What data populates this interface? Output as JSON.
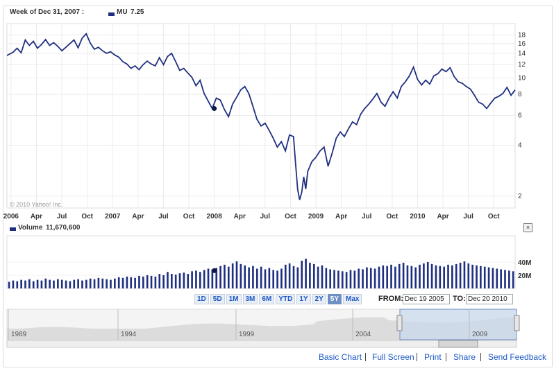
{
  "header": {
    "week_label": "Week of Dec 31, 2007 :",
    "symbol": "MU",
    "symbol_value": "7.25",
    "line_color": "#1f2f7f"
  },
  "watermark": "© 2010 Yahoo! Inc.",
  "volume_header": {
    "label": "Volume",
    "value": "11,670,600"
  },
  "close_icon": "close-icon",
  "range_buttons": [
    {
      "label": "1D",
      "active": false
    },
    {
      "label": "5D",
      "active": false
    },
    {
      "label": "1M",
      "active": false
    },
    {
      "label": "3M",
      "active": false
    },
    {
      "label": "6M",
      "active": false
    },
    {
      "label": "YTD",
      "active": false
    },
    {
      "label": "1Y",
      "active": false
    },
    {
      "label": "2Y",
      "active": false
    },
    {
      "label": "5Y",
      "active": true
    },
    {
      "label": "Max",
      "active": false
    }
  ],
  "date_range": {
    "from_label": "FROM:",
    "from_value": "Dec 19 2005",
    "to_label": "TO:",
    "to_value": "Dec 20 2010"
  },
  "footer": {
    "basic_chart": "Basic Chart",
    "full_screen": "Full Screen",
    "print": "Print",
    "share": "Share",
    "send_feedback": "Send Feedback"
  },
  "navigator": {
    "year_labels": [
      "1989",
      "1994",
      "1999",
      "2004",
      "2009"
    ]
  },
  "chart_data": [
    {
      "type": "line",
      "title": "",
      "yscale": "log",
      "ylim": [
        1.7,
        21
      ],
      "y_ticks": [
        2,
        4,
        6,
        8,
        10,
        12,
        14,
        16,
        18
      ],
      "x_ticks": [
        "2006",
        "Apr",
        "Jul",
        "Oct",
        "2007",
        "Apr",
        "Jul",
        "Oct",
        "2008",
        "Apr",
        "Jul",
        "Oct",
        "2009",
        "Apr",
        "Jul",
        "Oct",
        "2010",
        "Apr",
        "Jul",
        "Oct"
      ],
      "grid": true,
      "series": [
        {
          "name": "MU",
          "color": "#1f2f7f",
          "x": [
            2005.96,
            2006.02,
            2006.06,
            2006.1,
            2006.14,
            2006.18,
            2006.22,
            2006.26,
            2006.3,
            2006.34,
            2006.38,
            2006.42,
            2006.46,
            2006.5,
            2006.54,
            2006.58,
            2006.62,
            2006.66,
            2006.7,
            2006.74,
            2006.78,
            2006.82,
            2006.86,
            2006.9,
            2006.94,
            2006.98,
            2007.02,
            2007.06,
            2007.1,
            2007.14,
            2007.18,
            2007.22,
            2007.26,
            2007.3,
            2007.34,
            2007.38,
            2007.42,
            2007.46,
            2007.5,
            2007.54,
            2007.58,
            2007.62,
            2007.66,
            2007.7,
            2007.74,
            2007.78,
            2007.82,
            2007.86,
            2007.9,
            2007.94,
            2007.98,
            2008.02,
            2008.06,
            2008.1,
            2008.14,
            2008.18,
            2008.22,
            2008.26,
            2008.3,
            2008.34,
            2008.38,
            2008.42,
            2008.46,
            2008.5,
            2008.54,
            2008.58,
            2008.62,
            2008.66,
            2008.7,
            2008.74,
            2008.78,
            2008.8,
            2008.82,
            2008.84,
            2008.86,
            2008.88,
            2008.9,
            2008.92,
            2008.96,
            2009.0,
            2009.04,
            2009.08,
            2009.12,
            2009.16,
            2009.2,
            2009.24,
            2009.28,
            2009.32,
            2009.36,
            2009.4,
            2009.44,
            2009.48,
            2009.52,
            2009.56,
            2009.6,
            2009.64,
            2009.68,
            2009.72,
            2009.76,
            2009.8,
            2009.84,
            2009.88,
            2009.92,
            2009.96,
            2010.0,
            2010.04,
            2010.08,
            2010.12,
            2010.16,
            2010.2,
            2010.24,
            2010.28,
            2010.32,
            2010.36,
            2010.4,
            2010.44,
            2010.48,
            2010.52,
            2010.56,
            2010.6,
            2010.64,
            2010.68,
            2010.72,
            2010.76,
            2010.8,
            2010.84,
            2010.88,
            2010.92,
            2010.96
          ],
          "y": [
            13.6,
            14.2,
            15.0,
            14.1,
            16.8,
            15.6,
            16.5,
            15.0,
            15.8,
            16.9,
            15.6,
            16.2,
            15.4,
            14.5,
            15.2,
            16.0,
            16.8,
            15.1,
            17.2,
            18.3,
            16.1,
            14.8,
            15.2,
            14.5,
            14.0,
            14.3,
            13.7,
            13.3,
            12.5,
            12.1,
            11.4,
            11.8,
            11.2,
            12.0,
            12.6,
            12.1,
            11.8,
            13.2,
            12.0,
            13.4,
            14.0,
            12.5,
            11.1,
            11.4,
            10.7,
            10.1,
            9.0,
            9.7,
            8.1,
            7.3,
            6.6,
            7.6,
            7.4,
            6.5,
            5.9,
            7.0,
            7.7,
            8.5,
            8.9,
            8.1,
            6.8,
            5.7,
            5.2,
            5.4,
            4.9,
            4.4,
            3.9,
            4.2,
            3.7,
            4.6,
            4.5,
            3.1,
            2.2,
            1.9,
            2.1,
            2.6,
            2.2,
            2.8,
            3.2,
            3.4,
            3.7,
            3.9,
            3.0,
            3.6,
            4.4,
            4.8,
            4.5,
            5.0,
            5.5,
            5.3,
            6.1,
            6.6,
            7.0,
            7.5,
            8.1,
            7.2,
            6.8,
            7.6,
            8.3,
            7.6,
            8.9,
            9.5,
            10.3,
            11.6,
            9.8,
            9.1,
            9.7,
            9.2,
            10.3,
            10.6,
            11.3,
            10.9,
            11.5,
            10.2,
            9.5,
            9.3,
            8.9,
            8.6,
            7.9,
            7.2,
            7.0,
            6.6,
            7.1,
            7.6,
            7.8,
            8.1,
            8.8,
            7.9,
            8.5
          ]
        }
      ]
    },
    {
      "type": "bar",
      "title": "",
      "ylim": [
        0,
        80
      ],
      "y_ticks": [
        "20M",
        "40M"
      ],
      "series": [
        {
          "name": "Volume",
          "values": [
            10,
            12,
            11,
            13,
            12,
            14,
            11,
            13,
            12,
            15,
            13,
            12,
            14,
            13,
            12,
            11,
            13,
            14,
            12,
            13,
            15,
            14,
            16,
            15,
            14,
            13,
            15,
            17,
            16,
            18,
            17,
            16,
            19,
            18,
            20,
            19,
            18,
            22,
            20,
            25,
            22,
            21,
            23,
            24,
            22,
            26,
            27,
            25,
            28,
            30,
            29,
            31,
            34,
            36,
            33,
            38,
            41,
            37,
            35,
            32,
            34,
            30,
            33,
            29,
            31,
            28,
            27,
            30,
            36,
            38,
            34,
            32,
            42,
            45,
            39,
            37,
            33,
            35,
            31,
            29,
            28,
            27,
            26,
            25,
            28,
            27,
            30,
            29,
            32,
            31,
            30,
            33,
            35,
            34,
            36,
            33,
            37,
            39,
            35,
            34,
            32,
            36,
            38,
            40,
            37,
            35,
            34,
            33,
            36,
            35,
            37,
            39,
            41,
            38,
            36,
            35,
            34,
            33,
            32,
            31,
            30,
            29,
            28,
            27,
            26
          ]
        }
      ]
    }
  ]
}
